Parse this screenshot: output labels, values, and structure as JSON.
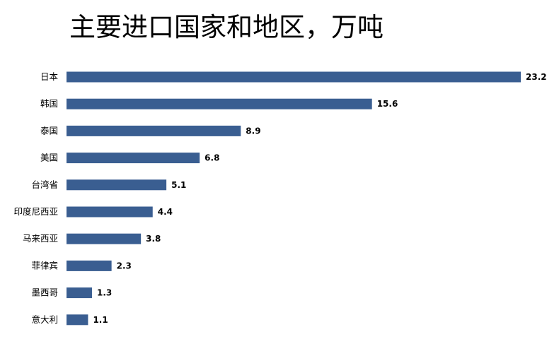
{
  "chart_data": {
    "type": "bar",
    "orientation": "horizontal",
    "title": "主要进口国家和地区，万吨",
    "categories": [
      "日本",
      "韩国",
      "泰国",
      "美国",
      "台湾省",
      "印度尼西亚",
      "马来西亚",
      "菲律宾",
      "墨西哥",
      "意大利"
    ],
    "values": [
      23.2,
      15.6,
      8.9,
      6.8,
      5.1,
      4.4,
      3.8,
      2.3,
      1.3,
      1.1
    ],
    "value_labels": [
      "23.2",
      "15.6",
      "8.9",
      "6.8",
      "5.1",
      "4.4",
      "3.8",
      "2.3",
      "1.3",
      "1.1"
    ],
    "bar_color": "#3A5E91",
    "xlim": [
      0,
      23.2
    ],
    "grid": false,
    "legend": "none"
  }
}
